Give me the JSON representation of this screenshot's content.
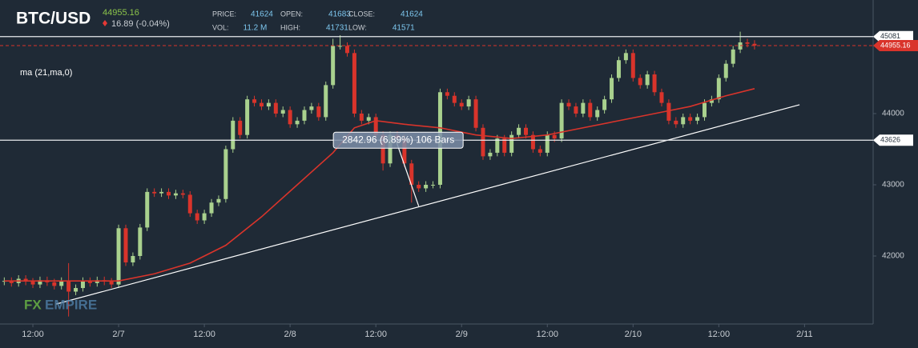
{
  "chart_data": {
    "type": "candlestick",
    "symbol": "BTC/USD",
    "last_price": 44955.16,
    "change": "16.89 (-0.04%)",
    "info": [
      {
        "label": "PRICE:",
        "value": "41624"
      },
      {
        "label": "OPEN:",
        "value": "41683"
      },
      {
        "label": "CLOSE:",
        "value": "41624"
      },
      {
        "label": "VOL:",
        "value": "11.2 M"
      },
      {
        "label": "HIGH:",
        "value": "41731"
      },
      {
        "label": "LOW:",
        "value": "41571"
      }
    ],
    "indicator": "ma (21,ma,0)",
    "watermark": [
      "FX",
      "EMPIRE"
    ],
    "measure_label": "2842.96 (6.89%) 106 Bars",
    "x": [
      -16,
      -15,
      -14,
      -13,
      -12,
      -11,
      -10,
      -9,
      -8,
      -7,
      -6,
      -5,
      -4,
      -3,
      -2,
      -1,
      0,
      1,
      2,
      3,
      4,
      5,
      6,
      7,
      8,
      9,
      10,
      11,
      12,
      13,
      14,
      15,
      16,
      17,
      18,
      19,
      20,
      21,
      22,
      23,
      24,
      25,
      26,
      27,
      28,
      29,
      30,
      31,
      32,
      33,
      34,
      35,
      36,
      37,
      38,
      39,
      40,
      41,
      42,
      43,
      44,
      45,
      46,
      47,
      48,
      49,
      50,
      51,
      52,
      53,
      54,
      55,
      56,
      57,
      58,
      59,
      60,
      61,
      62,
      63,
      64,
      65,
      66,
      67,
      68,
      69,
      70,
      71,
      72,
      73,
      74,
      75,
      76,
      77,
      78,
      79,
      80,
      81,
      82,
      83,
      84,
      85,
      86,
      87,
      88,
      89
    ],
    "open": [
      41640,
      41650,
      41620,
      41680,
      41640,
      41600,
      41660,
      41630,
      41580,
      41650,
      41500,
      41550,
      41650,
      41620,
      41660,
      41640,
      41600,
      42390,
      41910,
      42000,
      42400,
      42900,
      42880,
      42900,
      42850,
      42880,
      42860,
      42600,
      42500,
      42600,
      42750,
      42800,
      43500,
      43900,
      43700,
      44200,
      44150,
      44100,
      44150,
      44000,
      44050,
      43850,
      43900,
      44050,
      44100,
      43950,
      44400,
      44950,
      44950,
      44850,
      44000,
      43900,
      43950,
      43700,
      43300,
      43700,
      43650,
      43300,
      43000,
      42950,
      43000,
      43000,
      44300,
      44250,
      44150,
      44100,
      44200,
      43800,
      43400,
      43450,
      43650,
      43450,
      43700,
      43800,
      43700,
      43500,
      43450,
      43700,
      43650,
      44150,
      44100,
      44000,
      44150,
      43950,
      44050,
      44200,
      44500,
      44750,
      44850,
      44500,
      44400,
      44550,
      44300,
      44150,
      43900,
      43850,
      43950,
      43900,
      43950,
      44150,
      44200,
      44500,
      44700,
      44900,
      45000,
      44980
    ],
    "high": [
      41700,
      41700,
      41730,
      41730,
      41690,
      41710,
      41710,
      41680,
      41700,
      41900,
      41600,
      41700,
      41700,
      41710,
      41710,
      41690,
      42440,
      42440,
      42050,
      42450,
      42950,
      42950,
      42950,
      42950,
      42930,
      42930,
      42910,
      42650,
      42650,
      42800,
      42850,
      43550,
      43950,
      43950,
      44250,
      44250,
      44200,
      44200,
      44200,
      44100,
      44100,
      43950,
      44100,
      44150,
      44150,
      44450,
      45050,
      45100,
      45000,
      44900,
      44050,
      44000,
      44000,
      43750,
      43750,
      43750,
      43700,
      43350,
      43050,
      43050,
      43050,
      44350,
      44350,
      44300,
      44200,
      44250,
      44250,
      43850,
      43500,
      43700,
      43700,
      43750,
      43850,
      43850,
      43750,
      43550,
      43750,
      43750,
      44200,
      44200,
      44150,
      44200,
      44200,
      44100,
      44250,
      44550,
      44800,
      44900,
      44900,
      44550,
      44600,
      44600,
      44350,
      44200,
      43950,
      44000,
      44000,
      44000,
      44200,
      44250,
      44550,
      44750,
      44950,
      45150,
      45050,
      45030
    ],
    "low": [
      41590,
      41570,
      41570,
      41590,
      41550,
      41550,
      41580,
      41530,
      41530,
      41150,
      41450,
      41500,
      41570,
      41570,
      41590,
      41550,
      41550,
      41860,
      41860,
      41950,
      42350,
      42830,
      42830,
      42800,
      42800,
      42810,
      42550,
      42450,
      42450,
      42550,
      42700,
      42750,
      43450,
      43650,
      43650,
      44100,
      44050,
      44050,
      43950,
      43950,
      43800,
      43800,
      43850,
      44000,
      43900,
      43900,
      44350,
      44900,
      44800,
      43950,
      43850,
      43850,
      43650,
      43200,
      43250,
      43600,
      43250,
      42750,
      42900,
      42900,
      42950,
      42950,
      44200,
      44100,
      44050,
      44050,
      43750,
      43350,
      43350,
      43400,
      43400,
      43400,
      43650,
      43650,
      43450,
      43400,
      43400,
      43600,
      43600,
      44050,
      43950,
      43950,
      43900,
      43900,
      44000,
      44150,
      44450,
      44700,
      44450,
      44350,
      44350,
      44250,
      44100,
      43850,
      43800,
      43800,
      43850,
      43850,
      43900,
      44100,
      44150,
      44450,
      44650,
      44850,
      44930,
      44900
    ],
    "close": [
      41650,
      41620,
      41680,
      41640,
      41600,
      41660,
      41630,
      41580,
      41650,
      41500,
      41550,
      41650,
      41620,
      41660,
      41640,
      41600,
      42390,
      41910,
      42000,
      42400,
      42900,
      42880,
      42900,
      42850,
      42880,
      42860,
      42600,
      42500,
      42600,
      42750,
      42800,
      43500,
      43900,
      43700,
      44200,
      44150,
      44100,
      44150,
      44000,
      44050,
      43850,
      43900,
      44050,
      44100,
      43950,
      44400,
      44950,
      44950,
      44850,
      44000,
      43900,
      43950,
      43700,
      43300,
      43700,
      43650,
      43300,
      43000,
      42950,
      43000,
      43000,
      44300,
      44250,
      44150,
      44100,
      44200,
      43800,
      43400,
      43450,
      43650,
      43450,
      43700,
      43800,
      43700,
      43500,
      43450,
      43700,
      43650,
      44150,
      44100,
      44000,
      44150,
      43950,
      44050,
      44200,
      44500,
      44750,
      44850,
      44500,
      44400,
      44550,
      44300,
      44150,
      43900,
      43850,
      43950,
      43900,
      43950,
      44150,
      44200,
      44500,
      44700,
      44900,
      45000,
      44980,
      44955.16
    ],
    "up_color": "#a9d18e",
    "down_color": "#d9342b",
    "ma": {
      "color": "#d9342b",
      "x": [
        -16,
        0,
        5,
        10,
        15,
        20,
        25,
        30,
        33,
        36,
        40,
        45,
        50,
        55,
        60,
        65,
        70,
        75,
        80,
        85,
        89
      ],
      "values": [
        41650,
        41650,
        41750,
        41900,
        42150,
        42550,
        43000,
        43450,
        43800,
        43900,
        43850,
        43800,
        43700,
        43650,
        43700,
        43800,
        43900,
        44000,
        44100,
        44250,
        44350
      ]
    },
    "levels": [
      45081,
      43626
    ],
    "trendlines": [
      {
        "x": [
          -8.7,
          95.3
        ],
        "y": [
          41326,
          44124
        ]
      },
      {
        "x": [
          38.8,
          42
        ],
        "y": [
          43626,
          42700
        ]
      }
    ],
    "xlim": [
      -16.6,
      105.6
    ],
    "ylim": [
      41045,
      45595
    ],
    "xticks": [
      {
        "value": -12,
        "label": "12:00"
      },
      {
        "value": 0,
        "label": "2/7"
      },
      {
        "value": 12,
        "label": "12:00"
      },
      {
        "value": 24,
        "label": "2/8"
      },
      {
        "value": 36,
        "label": "12:00"
      },
      {
        "value": 48,
        "label": "2/9"
      },
      {
        "value": 60,
        "label": "12:00"
      },
      {
        "value": 72,
        "label": "2/10"
      },
      {
        "value": 84,
        "label": "12:00"
      },
      {
        "value": 96,
        "label": "2/11"
      }
    ],
    "yticks": [
      42000,
      43000,
      44000
    ]
  }
}
